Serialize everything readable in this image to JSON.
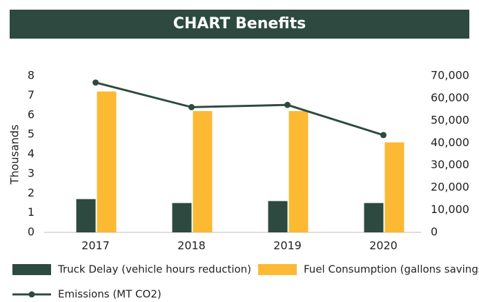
{
  "chart_data": {
    "type": "bar",
    "title": "CHART Benefits",
    "y_label": "Thousands",
    "categories": [
      "2017",
      "2018",
      "2019",
      "2020"
    ],
    "series": [
      {
        "name": "Truck Delay (vehicle hours reduction)",
        "color": "#2e4a40",
        "values": [
          1.7,
          1.5,
          1.6,
          1.5
        ]
      },
      {
        "name": "Fuel Consumption (gallons savings)",
        "color": "#fbb934",
        "values": [
          7.2,
          6.2,
          6.2,
          4.6
        ]
      },
      {
        "name": "Emissions (MT CO2)",
        "color": "#2e4a40",
        "type": "line",
        "axis": "y2",
        "values": [
          67000,
          56000,
          57000,
          43500
        ]
      }
    ],
    "ylim": [
      0,
      8
    ],
    "yticks": [
      0,
      1,
      2,
      3,
      4,
      5,
      6,
      7,
      8
    ],
    "y2lim": [
      0,
      70000
    ],
    "y2ticks": [
      0,
      {
        "value": 10000,
        "label": "10,000"
      },
      {
        "value": 20000,
        "label": "20,000"
      },
      {
        "value": 30000,
        "label": "30,000"
      },
      {
        "value": 40000,
        "label": "40,000"
      },
      {
        "value": 50000,
        "label": "50,000"
      },
      {
        "value": 60000,
        "label": "60,000"
      },
      {
        "value": 70000,
        "label": "70,000"
      }
    ],
    "grid": false
  }
}
